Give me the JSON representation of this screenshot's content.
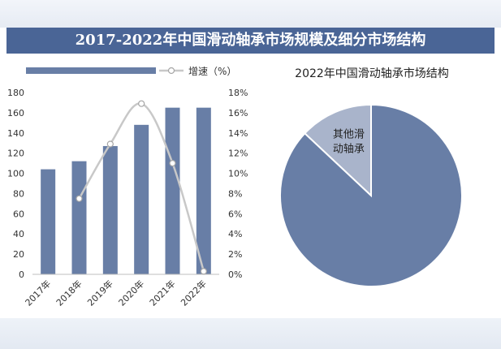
{
  "page_title": "2017-2022年中国滑动轴承市场规模及细分市场结构",
  "chart_data": [
    {
      "type": "bar",
      "categories": [
        "2017年",
        "2018年",
        "2019年",
        "2020年",
        "2021年",
        "2022年"
      ],
      "series": [
        {
          "name": "",
          "type": "bar",
          "axis": "left",
          "values": [
            104,
            112,
            127,
            148,
            165,
            165
          ]
        },
        {
          "name": "增速（%）",
          "type": "line",
          "axis": "right",
          "values": [
            null,
            7.5,
            12.9,
            16.9,
            11.0,
            0.3
          ]
        }
      ],
      "y_ticks": [
        "0",
        "20",
        "40",
        "60",
        "80",
        "100",
        "120",
        "140",
        "160",
        "180"
      ],
      "y2_ticks": [
        "0%",
        "2%",
        "4%",
        "6%",
        "8%",
        "10%",
        "12%",
        "14%",
        "16%",
        "18%"
      ],
      "ylim": [
        0,
        180
      ],
      "y2lim": [
        0,
        18
      ],
      "colors": {
        "bar": "#687ea6",
        "line": "#c8c8c8",
        "marker_edge": "#a6a6a6"
      },
      "legend_position": "top",
      "grid": false
    },
    {
      "type": "pie",
      "title": "2022年中国滑动轴承市场结构",
      "slices": [
        {
          "label": "其他滑动轴承",
          "value": 13,
          "color": "#a9b4cb",
          "display_lines": [
            "其他滑",
            "动轴承"
          ]
        },
        {
          "label": "",
          "value": 87,
          "color": "#687ea6",
          "display_lines": []
        }
      ]
    }
  ]
}
